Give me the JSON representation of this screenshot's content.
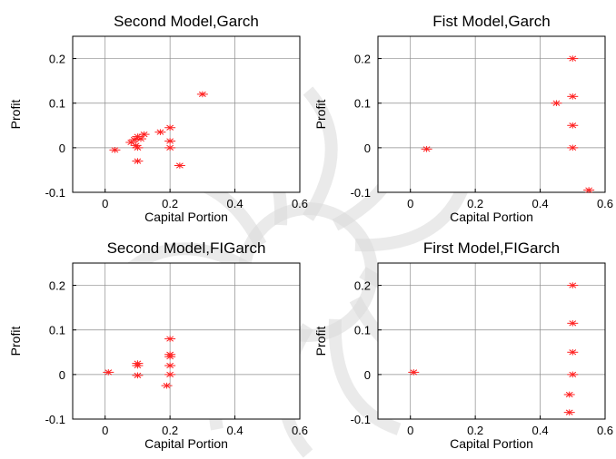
{
  "chart_data": [
    {
      "type": "scatter",
      "title": "Second Model,Garch",
      "xlabel": "Capital Portion",
      "ylabel": "Profit",
      "xlim": [
        -0.1,
        0.6
      ],
      "ylim": [
        -0.1,
        0.25
      ],
      "xticks": [
        "0",
        "0.2",
        "0.4",
        "0.6"
      ],
      "yticks": [
        "-0.1",
        "0",
        "0.1",
        "0.2"
      ],
      "grid": true,
      "marker_color": "#ff2020",
      "points": [
        [
          0.03,
          -0.005
        ],
        [
          0.08,
          0.012
        ],
        [
          0.09,
          0.018
        ],
        [
          0.095,
          0.005
        ],
        [
          0.1,
          0.0
        ],
        [
          0.1,
          -0.03
        ],
        [
          0.1,
          0.025
        ],
        [
          0.11,
          0.02
        ],
        [
          0.12,
          0.03
        ],
        [
          0.17,
          0.035
        ],
        [
          0.2,
          0.045
        ],
        [
          0.2,
          0.015
        ],
        [
          0.2,
          0.0
        ],
        [
          0.23,
          -0.04
        ],
        [
          0.3,
          0.12
        ]
      ]
    },
    {
      "type": "scatter",
      "title": "Fist Model,Garch",
      "xlabel": "Capital Portion",
      "ylabel": "Profit",
      "xlim": [
        -0.1,
        0.6
      ],
      "ylim": [
        -0.1,
        0.25
      ],
      "xticks": [
        "0",
        "0.2",
        "0.4",
        "0.6"
      ],
      "yticks": [
        "-0.1",
        "0",
        "0.1",
        "0.2"
      ],
      "grid": true,
      "marker_color": "#ff2020",
      "points": [
        [
          0.05,
          -0.003
        ],
        [
          0.45,
          0.1
        ],
        [
          0.5,
          0.2
        ],
        [
          0.5,
          0.115
        ],
        [
          0.5,
          0.05
        ],
        [
          0.5,
          0.0
        ],
        [
          0.55,
          -0.095
        ]
      ]
    },
    {
      "type": "scatter",
      "title": "Second Model,FIGarch",
      "xlabel": "Capital Portion",
      "ylabel": "Profit",
      "xlim": [
        -0.1,
        0.6
      ],
      "ylim": [
        -0.1,
        0.25
      ],
      "xticks": [
        "0",
        "0.2",
        "0.4",
        "0.6"
      ],
      "yticks": [
        "-0.1",
        "0",
        "0.1",
        "0.2"
      ],
      "grid": true,
      "marker_color": "#ff2020",
      "points": [
        [
          0.01,
          0.005
        ],
        [
          0.1,
          0.025
        ],
        [
          0.1,
          0.02
        ],
        [
          0.1,
          -0.002
        ],
        [
          0.19,
          -0.025
        ],
        [
          0.2,
          0.08
        ],
        [
          0.2,
          0.045
        ],
        [
          0.2,
          0.04
        ],
        [
          0.2,
          0.02
        ],
        [
          0.2,
          0.0
        ]
      ]
    },
    {
      "type": "scatter",
      "title": "First Model,FIGarch",
      "xlabel": "Capital Portion",
      "ylabel": "Profit",
      "xlim": [
        -0.1,
        0.6
      ],
      "ylim": [
        -0.1,
        0.25
      ],
      "xticks": [
        "0",
        "0.2",
        "0.4",
        "0.6"
      ],
      "yticks": [
        "-0.1",
        "0",
        "0.1",
        "0.2"
      ],
      "grid": true,
      "marker_color": "#ff2020",
      "points": [
        [
          0.01,
          0.005
        ],
        [
          0.5,
          0.2
        ],
        [
          0.5,
          0.115
        ],
        [
          0.5,
          0.05
        ],
        [
          0.5,
          0.0
        ],
        [
          0.49,
          -0.045
        ],
        [
          0.49,
          -0.085
        ]
      ]
    }
  ]
}
